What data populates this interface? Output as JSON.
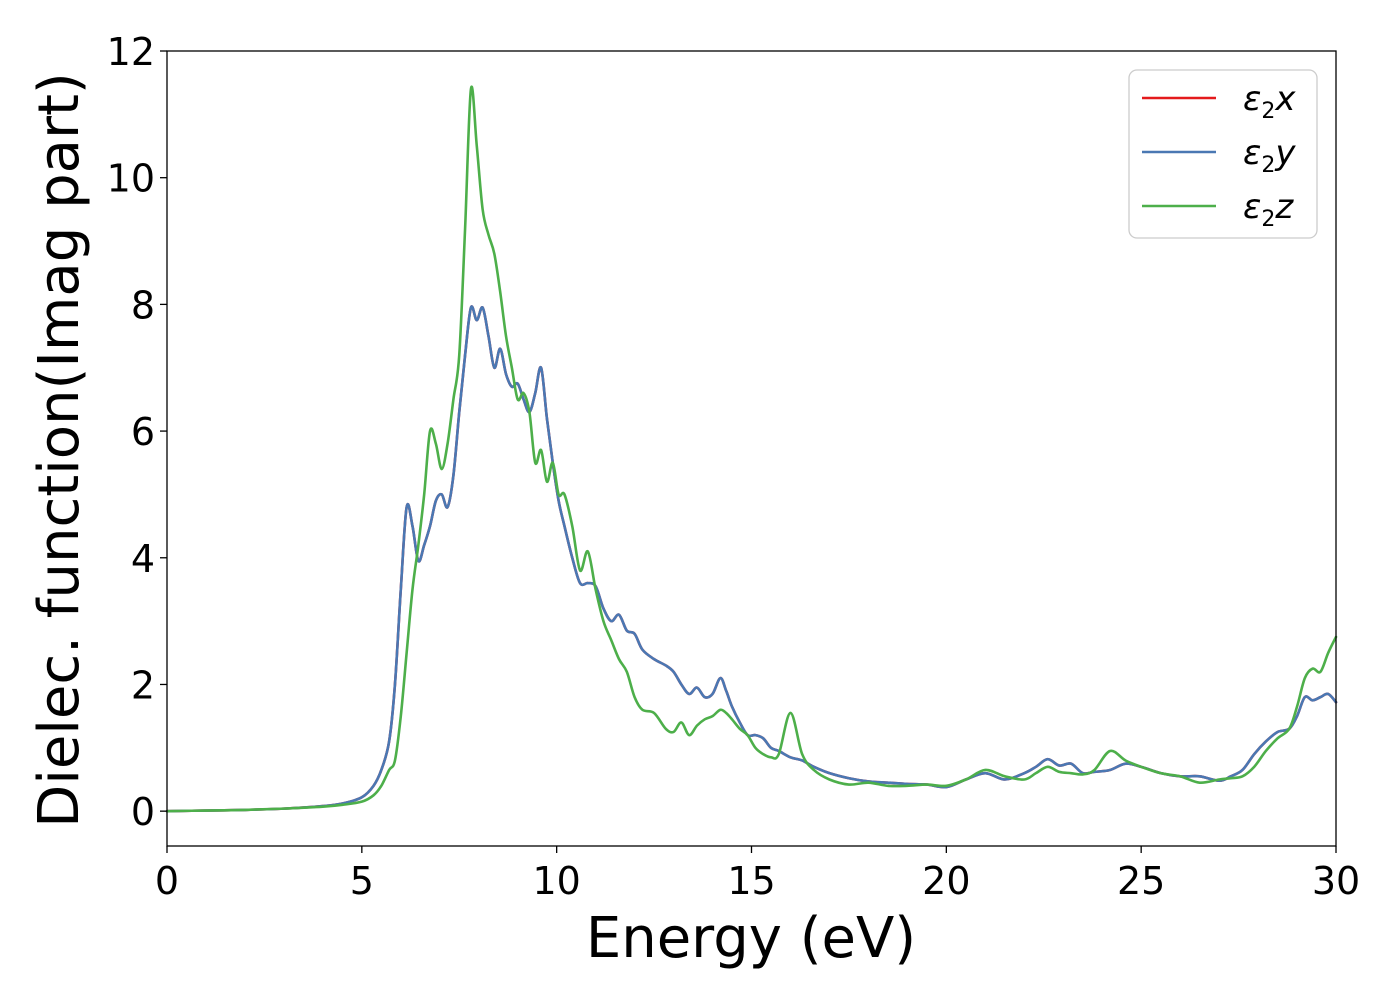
{
  "chart_data": {
    "type": "line",
    "xlabel": "Energy (eV)",
    "ylabel": "Dielec. function(Imag part)",
    "xlim": [
      0,
      30
    ],
    "ylim": [
      -0.55,
      12
    ],
    "xticks": [
      0,
      5,
      10,
      15,
      20,
      25,
      30
    ],
    "yticks": [
      0,
      2,
      4,
      6,
      8,
      10,
      12
    ],
    "grid": false,
    "legend_position": "top-right",
    "series": [
      {
        "name": "ε2x",
        "legend": {
          "symbol": "ε",
          "sub": "2",
          "var": "x"
        },
        "color": "#e41a1c",
        "x": [
          0,
          1,
          2,
          3,
          4,
          4.5,
          5,
          5.3,
          5.5,
          5.7,
          5.85,
          6.0,
          6.15,
          6.3,
          6.45,
          6.6,
          6.75,
          6.9,
          7.05,
          7.2,
          7.35,
          7.5,
          7.65,
          7.8,
          7.95,
          8.1,
          8.25,
          8.4,
          8.55,
          8.7,
          8.85,
          9.0,
          9.15,
          9.3,
          9.45,
          9.6,
          9.75,
          9.9,
          10.05,
          10.2,
          10.4,
          10.6,
          10.8,
          11.0,
          11.2,
          11.4,
          11.6,
          11.8,
          12.0,
          12.2,
          12.5,
          12.8,
          13.0,
          13.2,
          13.4,
          13.6,
          13.8,
          14.0,
          14.2,
          14.35,
          14.5,
          14.7,
          14.9,
          15.1,
          15.3,
          15.5,
          15.7,
          16.0,
          16.3,
          16.6,
          17.0,
          17.5,
          18.0,
          18.5,
          19.0,
          19.5,
          20.0,
          20.5,
          21.0,
          21.5,
          22.0,
          22.3,
          22.6,
          22.9,
          23.2,
          23.5,
          23.8,
          24.2,
          24.6,
          25.0,
          25.5,
          26.0,
          26.5,
          27.0,
          27.3,
          27.6,
          27.9,
          28.2,
          28.5,
          28.8,
          29.0,
          29.2,
          29.4,
          29.6,
          29.8,
          30.0
        ],
        "values": [
          0.0,
          0.01,
          0.02,
          0.04,
          0.08,
          0.12,
          0.22,
          0.4,
          0.65,
          1.1,
          2.0,
          3.5,
          4.8,
          4.5,
          3.95,
          4.2,
          4.5,
          4.9,
          5.0,
          4.8,
          5.3,
          6.3,
          7.2,
          7.95,
          7.75,
          7.95,
          7.5,
          7.0,
          7.3,
          6.9,
          6.7,
          6.75,
          6.5,
          6.3,
          6.6,
          7.0,
          6.2,
          5.5,
          4.9,
          4.5,
          4.0,
          3.6,
          3.6,
          3.55,
          3.2,
          3.0,
          3.1,
          2.85,
          2.8,
          2.55,
          2.4,
          2.3,
          2.2,
          2.0,
          1.85,
          1.95,
          1.8,
          1.85,
          2.1,
          1.9,
          1.65,
          1.4,
          1.2,
          1.2,
          1.15,
          1.0,
          0.95,
          0.85,
          0.8,
          0.7,
          0.6,
          0.52,
          0.47,
          0.45,
          0.43,
          0.42,
          0.38,
          0.5,
          0.6,
          0.5,
          0.6,
          0.7,
          0.82,
          0.72,
          0.75,
          0.6,
          0.62,
          0.65,
          0.75,
          0.7,
          0.6,
          0.55,
          0.55,
          0.48,
          0.55,
          0.65,
          0.9,
          1.1,
          1.25,
          1.3,
          1.5,
          1.8,
          1.75,
          1.8,
          1.85,
          1.72
        ]
      },
      {
        "name": "ε2y",
        "legend": {
          "symbol": "ε",
          "sub": "2",
          "var": "y"
        },
        "color": "#4a78b3",
        "x": [
          0,
          1,
          2,
          3,
          4,
          4.5,
          5,
          5.3,
          5.5,
          5.7,
          5.85,
          6.0,
          6.15,
          6.3,
          6.45,
          6.6,
          6.75,
          6.9,
          7.05,
          7.2,
          7.35,
          7.5,
          7.65,
          7.8,
          7.95,
          8.1,
          8.25,
          8.4,
          8.55,
          8.7,
          8.85,
          9.0,
          9.15,
          9.3,
          9.45,
          9.6,
          9.75,
          9.9,
          10.05,
          10.2,
          10.4,
          10.6,
          10.8,
          11.0,
          11.2,
          11.4,
          11.6,
          11.8,
          12.0,
          12.2,
          12.5,
          12.8,
          13.0,
          13.2,
          13.4,
          13.6,
          13.8,
          14.0,
          14.2,
          14.35,
          14.5,
          14.7,
          14.9,
          15.1,
          15.3,
          15.5,
          15.7,
          16.0,
          16.3,
          16.6,
          17.0,
          17.5,
          18.0,
          18.5,
          19.0,
          19.5,
          20.0,
          20.5,
          21.0,
          21.5,
          22.0,
          22.3,
          22.6,
          22.9,
          23.2,
          23.5,
          23.8,
          24.2,
          24.6,
          25.0,
          25.5,
          26.0,
          26.5,
          27.0,
          27.3,
          27.6,
          27.9,
          28.2,
          28.5,
          28.8,
          29.0,
          29.2,
          29.4,
          29.6,
          29.8,
          30.0
        ],
        "values": [
          0.0,
          0.01,
          0.02,
          0.04,
          0.08,
          0.12,
          0.22,
          0.4,
          0.65,
          1.1,
          2.0,
          3.5,
          4.8,
          4.5,
          3.95,
          4.2,
          4.5,
          4.9,
          5.0,
          4.8,
          5.3,
          6.3,
          7.2,
          7.95,
          7.75,
          7.95,
          7.5,
          7.0,
          7.3,
          6.9,
          6.7,
          6.75,
          6.5,
          6.3,
          6.6,
          7.0,
          6.2,
          5.5,
          4.9,
          4.5,
          4.0,
          3.6,
          3.6,
          3.55,
          3.2,
          3.0,
          3.1,
          2.85,
          2.8,
          2.55,
          2.4,
          2.3,
          2.2,
          2.0,
          1.85,
          1.95,
          1.8,
          1.85,
          2.1,
          1.9,
          1.65,
          1.4,
          1.2,
          1.2,
          1.15,
          1.0,
          0.95,
          0.85,
          0.8,
          0.7,
          0.6,
          0.52,
          0.47,
          0.45,
          0.43,
          0.42,
          0.38,
          0.5,
          0.6,
          0.5,
          0.6,
          0.7,
          0.82,
          0.72,
          0.75,
          0.6,
          0.62,
          0.65,
          0.75,
          0.7,
          0.6,
          0.55,
          0.55,
          0.48,
          0.55,
          0.65,
          0.9,
          1.1,
          1.25,
          1.3,
          1.5,
          1.8,
          1.75,
          1.8,
          1.85,
          1.72
        ]
      },
      {
        "name": "ε2z",
        "legend": {
          "symbol": "ε",
          "sub": "2",
          "var": "z"
        },
        "color": "#4daf4a",
        "x": [
          0,
          1,
          2,
          3,
          4,
          4.5,
          5,
          5.3,
          5.5,
          5.7,
          5.85,
          6.0,
          6.15,
          6.3,
          6.45,
          6.6,
          6.75,
          6.9,
          7.05,
          7.2,
          7.35,
          7.5,
          7.65,
          7.8,
          7.95,
          8.1,
          8.25,
          8.4,
          8.55,
          8.7,
          8.85,
          9.0,
          9.15,
          9.3,
          9.45,
          9.6,
          9.75,
          9.9,
          10.05,
          10.2,
          10.4,
          10.6,
          10.8,
          11.0,
          11.2,
          11.4,
          11.6,
          11.8,
          12.0,
          12.2,
          12.5,
          12.8,
          13.0,
          13.2,
          13.4,
          13.6,
          13.8,
          14.0,
          14.2,
          14.35,
          14.5,
          14.7,
          14.9,
          15.1,
          15.3,
          15.5,
          15.7,
          16.0,
          16.3,
          16.6,
          17.0,
          17.5,
          18.0,
          18.5,
          19.0,
          19.5,
          20.0,
          20.5,
          21.0,
          21.5,
          22.0,
          22.3,
          22.6,
          22.9,
          23.2,
          23.5,
          23.8,
          24.2,
          24.6,
          25.0,
          25.5,
          26.0,
          26.5,
          27.0,
          27.3,
          27.6,
          27.9,
          28.2,
          28.5,
          28.8,
          29.0,
          29.2,
          29.4,
          29.6,
          29.8,
          30.0
        ],
        "values": [
          0.0,
          0.01,
          0.02,
          0.04,
          0.07,
          0.1,
          0.15,
          0.25,
          0.4,
          0.65,
          0.8,
          1.5,
          2.5,
          3.5,
          4.2,
          5.0,
          6.0,
          5.8,
          5.4,
          5.8,
          6.5,
          7.2,
          9.2,
          11.4,
          10.5,
          9.5,
          9.1,
          8.8,
          8.2,
          7.5,
          7.0,
          6.5,
          6.6,
          6.3,
          5.5,
          5.7,
          5.2,
          5.5,
          5.0,
          5.0,
          4.5,
          3.8,
          4.1,
          3.5,
          3.0,
          2.7,
          2.4,
          2.2,
          1.8,
          1.6,
          1.55,
          1.3,
          1.25,
          1.4,
          1.2,
          1.35,
          1.45,
          1.5,
          1.6,
          1.55,
          1.45,
          1.3,
          1.2,
          1.0,
          0.9,
          0.85,
          0.9,
          1.55,
          0.9,
          0.65,
          0.5,
          0.42,
          0.45,
          0.4,
          0.4,
          0.42,
          0.4,
          0.5,
          0.65,
          0.55,
          0.5,
          0.6,
          0.7,
          0.62,
          0.6,
          0.58,
          0.65,
          0.95,
          0.8,
          0.7,
          0.6,
          0.55,
          0.45,
          0.5,
          0.52,
          0.55,
          0.7,
          0.95,
          1.15,
          1.3,
          1.65,
          2.1,
          2.25,
          2.2,
          2.5,
          2.75
        ]
      }
    ]
  }
}
